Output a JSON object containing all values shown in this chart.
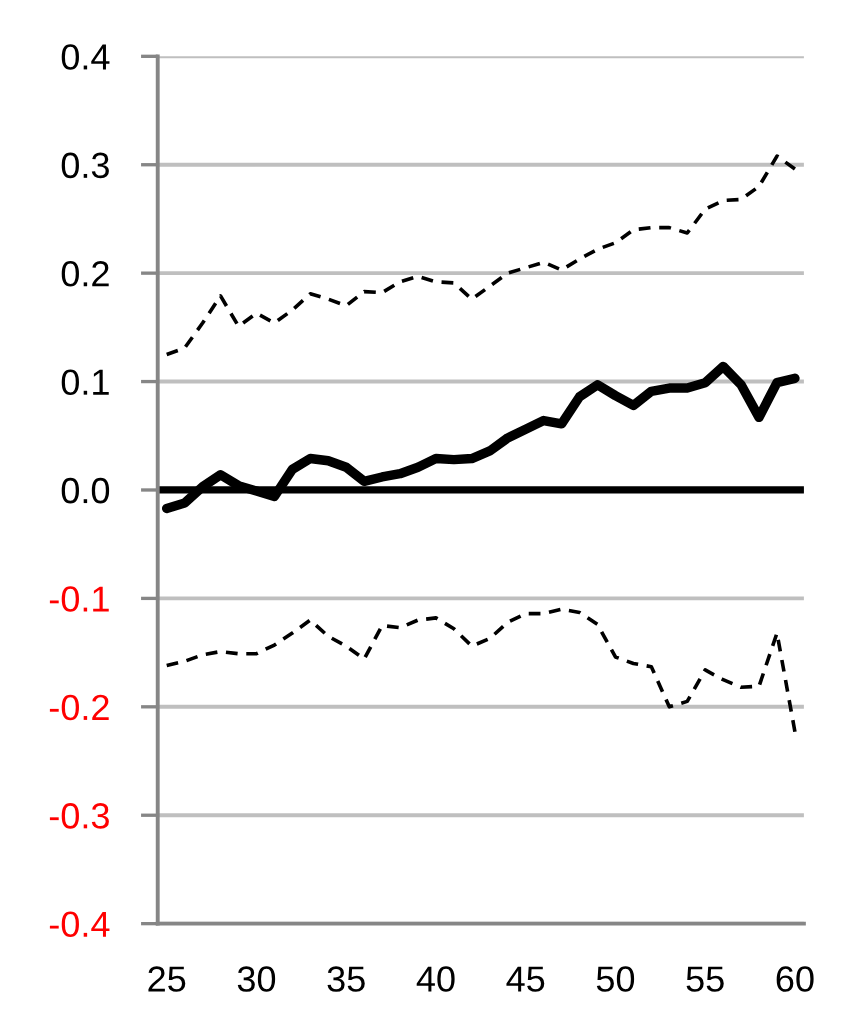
{
  "chart_data": {
    "type": "line",
    "x": [
      25,
      26,
      27,
      28,
      29,
      30,
      31,
      32,
      33,
      34,
      35,
      36,
      37,
      38,
      39,
      40,
      41,
      42,
      43,
      44,
      45,
      46,
      47,
      48,
      49,
      50,
      51,
      52,
      53,
      54,
      55,
      56,
      57,
      58,
      59,
      60
    ],
    "series": [
      {
        "color": "#000000",
        "line_style": "dashed",
        "values": [
          0.125,
          0.131,
          0.154,
          0.179,
          0.151,
          0.163,
          0.154,
          0.166,
          0.181,
          0.176,
          0.17,
          0.183,
          0.182,
          0.192,
          0.197,
          0.192,
          0.191,
          0.176,
          0.188,
          0.2,
          0.205,
          0.21,
          0.203,
          0.213,
          0.222,
          0.228,
          0.24,
          0.242,
          0.242,
          0.237,
          0.259,
          0.267,
          0.268,
          0.28,
          0.308,
          0.296
        ]
      },
      {
        "color": "#000000",
        "line_style": "solid",
        "values": [
          -0.017,
          -0.012,
          0.003,
          0.014,
          0.004,
          -0.001,
          -0.006,
          0.019,
          0.029,
          0.027,
          0.021,
          0.008,
          0.012,
          0.015,
          0.021,
          0.029,
          0.028,
          0.029,
          0.036,
          0.048,
          0.056,
          0.064,
          0.061,
          0.086,
          0.097,
          0.087,
          0.078,
          0.091,
          0.094,
          0.094,
          0.099,
          0.114,
          0.097,
          0.067,
          0.099,
          0.103
        ]
      },
      {
        "color": "#000000",
        "line_style": "dashed",
        "values": [
          -0.162,
          -0.158,
          -0.152,
          -0.149,
          -0.151,
          -0.151,
          -0.143,
          -0.132,
          -0.12,
          -0.135,
          -0.144,
          -0.156,
          -0.125,
          -0.127,
          -0.12,
          -0.118,
          -0.128,
          -0.144,
          -0.137,
          -0.122,
          -0.114,
          -0.114,
          -0.11,
          -0.113,
          -0.124,
          -0.154,
          -0.16,
          -0.163,
          -0.2,
          -0.195,
          -0.166,
          -0.175,
          -0.182,
          -0.181,
          -0.132,
          -0.223
        ]
      }
    ],
    "xlim": [
      24.5,
      60.5
    ],
    "xticks": [
      25,
      30,
      35,
      40,
      45,
      50,
      55,
      60
    ],
    "ylim": [
      -0.4,
      0.4
    ],
    "yticks": [
      -0.4,
      -0.3,
      -0.2,
      -0.1,
      {
        "value": 0,
        "label": "0.0"
      },
      0.1,
      0.2,
      0.3,
      0.4
    ],
    "grid": "y",
    "ref_lines": [
      {
        "axis": "y",
        "value": 0,
        "color": "#000000"
      }
    ]
  }
}
